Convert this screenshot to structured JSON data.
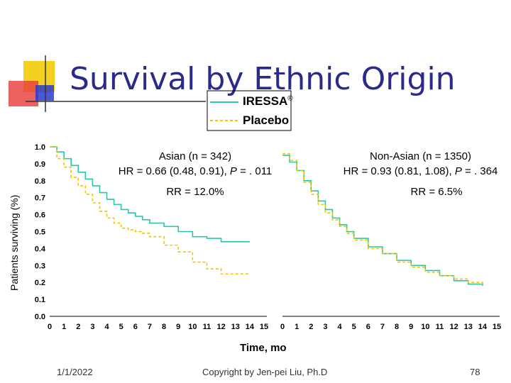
{
  "slide": {
    "title": "Survival by Ethnic Origin",
    "date": "1/1/2022",
    "copyright": "Copyright by Jen-pei Liu, Ph.D",
    "page_number": "78"
  },
  "colors": {
    "iressa": "#2ec4a8",
    "placebo": "#f2c500",
    "title": "#2a2a8a",
    "deco_yellow": "#f2d21e",
    "deco_red": "#e83a3a",
    "deco_blue": "#2b3bd0"
  },
  "chart_data": [
    {
      "type": "line",
      "panel": "left",
      "title": "Asian (n = 342)",
      "hr_text": "HR = 0.66  (0.48, 0.91), ",
      "p_label": "P",
      "p_text": " = . 011",
      "rr_text": "RR = 12.0%",
      "xlabel": "Time, mo",
      "ylabel": "Patients surviving (%)",
      "ylim": [
        0,
        1
      ],
      "xlim": [
        0,
        15
      ],
      "y_ticks": [
        "0.0",
        "0.1",
        "0.2",
        "0.3",
        "0.4",
        "0.5",
        "0.6",
        "0.7",
        "0.8",
        "0.9",
        "1.0"
      ],
      "x_ticks": [
        "0",
        "1",
        "2",
        "3",
        "4",
        "5",
        "6",
        "7",
        "8",
        "9",
        "10",
        "11",
        "12",
        "13",
        "14",
        "15"
      ],
      "legend": [
        {
          "name": "IRESSA",
          "symbol": "®",
          "style": "solid"
        },
        {
          "name": "Placebo",
          "style": "dashed"
        }
      ],
      "series": [
        {
          "name": "IRESSA",
          "x": [
            0,
            0.5,
            1,
            1.5,
            2,
            2.5,
            3,
            3.5,
            4,
            4.5,
            5,
            5.5,
            6,
            6.5,
            7,
            8,
            9,
            10,
            11,
            12,
            13,
            14
          ],
          "y": [
            1.0,
            0.97,
            0.93,
            0.89,
            0.85,
            0.81,
            0.77,
            0.73,
            0.69,
            0.66,
            0.63,
            0.61,
            0.59,
            0.57,
            0.55,
            0.53,
            0.5,
            0.47,
            0.46,
            0.44,
            0.44,
            0.44
          ]
        },
        {
          "name": "Placebo",
          "x": [
            0,
            0.5,
            1,
            1.5,
            2,
            2.5,
            3,
            3.5,
            4,
            4.5,
            5,
            5.5,
            6,
            6.5,
            7,
            8,
            9,
            10,
            11,
            12,
            13,
            14
          ],
          "y": [
            1.0,
            0.93,
            0.88,
            0.82,
            0.77,
            0.72,
            0.67,
            0.62,
            0.58,
            0.55,
            0.52,
            0.51,
            0.5,
            0.49,
            0.47,
            0.42,
            0.38,
            0.32,
            0.28,
            0.25,
            0.25,
            0.25
          ]
        }
      ]
    },
    {
      "type": "line",
      "panel": "right",
      "title": "Non-Asian (n = 1350)",
      "hr_text": "HR = 0.93  (0.81, 1.08), ",
      "p_label": "P",
      "p_text": " = . 364",
      "rr_text": "RR = 6.5%",
      "ylim": [
        0,
        1
      ],
      "xlim": [
        0,
        15
      ],
      "x_ticks": [
        "0",
        "1",
        "2",
        "3",
        "4",
        "5",
        "6",
        "7",
        "8",
        "9",
        "10",
        "11",
        "12",
        "13",
        "14",
        "15"
      ],
      "series": [
        {
          "name": "IRESSA",
          "x": [
            0,
            0.5,
            1,
            1.5,
            2,
            2.5,
            3,
            3.5,
            4,
            4.5,
            5,
            6,
            7,
            8,
            9,
            10,
            11,
            12,
            13,
            14
          ],
          "y": [
            0.95,
            0.91,
            0.86,
            0.8,
            0.74,
            0.68,
            0.63,
            0.58,
            0.54,
            0.5,
            0.46,
            0.41,
            0.37,
            0.33,
            0.3,
            0.27,
            0.24,
            0.21,
            0.19,
            0.18
          ]
        },
        {
          "name": "Placebo",
          "x": [
            0,
            0.5,
            1,
            1.5,
            2,
            2.5,
            3,
            3.5,
            4,
            4.5,
            5,
            6,
            7,
            8,
            9,
            10,
            11,
            12,
            13,
            14
          ],
          "y": [
            0.96,
            0.92,
            0.86,
            0.79,
            0.72,
            0.66,
            0.61,
            0.57,
            0.53,
            0.49,
            0.45,
            0.4,
            0.37,
            0.32,
            0.29,
            0.26,
            0.24,
            0.22,
            0.2,
            0.19
          ]
        }
      ]
    }
  ]
}
